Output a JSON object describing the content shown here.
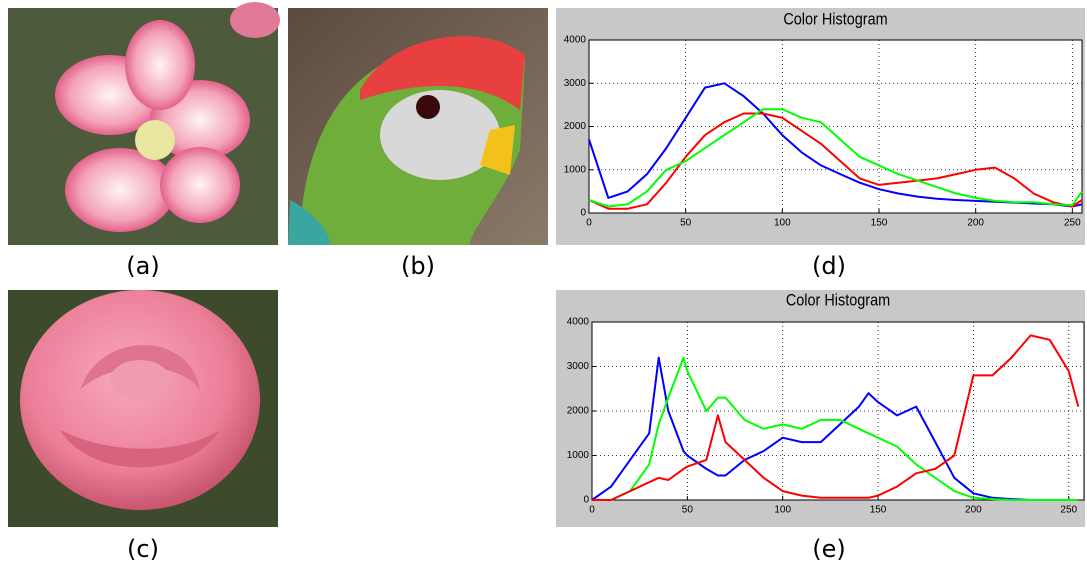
{
  "captions": [
    "(a)",
    "(b)",
    "(c)",
    "(d)",
    "(e)"
  ],
  "chart_data": [
    {
      "type": "line",
      "title": "Color Histogram",
      "x": [
        0,
        10,
        20,
        30,
        40,
        50,
        60,
        70,
        80,
        90,
        100,
        110,
        120,
        130,
        140,
        150,
        160,
        170,
        180,
        190,
        200,
        210,
        220,
        230,
        240,
        250,
        255
      ],
      "series": [
        {
          "color": "#0000ff",
          "values": [
            1700,
            350,
            500,
            900,
            1500,
            2200,
            2900,
            3000,
            2700,
            2300,
            1800,
            1400,
            1100,
            900,
            700,
            550,
            450,
            380,
            330,
            300,
            280,
            260,
            240,
            220,
            200,
            150,
            200
          ]
        },
        {
          "color": "#ff0000",
          "values": [
            300,
            100,
            100,
            200,
            700,
            1300,
            1800,
            2100,
            2300,
            2300,
            2200,
            1900,
            1600,
            1200,
            800,
            650,
            700,
            750,
            800,
            900,
            1000,
            1050,
            800,
            450,
            250,
            150,
            300
          ]
        },
        {
          "color": "#00ff00",
          "values": [
            300,
            150,
            200,
            500,
            1000,
            1200,
            1500,
            1800,
            2100,
            2400,
            2400,
            2200,
            2100,
            1700,
            1300,
            1100,
            900,
            750,
            600,
            450,
            350,
            280,
            250,
            250,
            200,
            180,
            500
          ]
        }
      ],
      "xlim": [
        0,
        255
      ],
      "xticks": [
        0,
        50,
        100,
        150,
        200,
        250
      ],
      "ylim": [
        0,
        4000
      ],
      "yticks": [
        0,
        1000,
        2000,
        3000,
        4000
      ],
      "grid": true
    },
    {
      "type": "line",
      "title": "Color Histogram",
      "x": [
        0,
        10,
        20,
        30,
        35,
        40,
        48,
        50,
        60,
        66,
        70,
        80,
        90,
        100,
        110,
        120,
        130,
        140,
        145,
        150,
        160,
        170,
        180,
        190,
        200,
        210,
        220,
        230,
        240,
        250,
        255
      ],
      "series": [
        {
          "color": "#0000ff",
          "values": [
            0,
            300,
            900,
            1500,
            3200,
            2000,
            1100,
            1000,
            700,
            550,
            550,
            900,
            1100,
            1400,
            1300,
            1300,
            1700,
            2100,
            2400,
            2200,
            1900,
            2100,
            1300,
            500,
            150,
            50,
            20,
            0,
            0,
            0,
            0
          ]
        },
        {
          "color": "#00ff00",
          "values": [
            0,
            0,
            200,
            800,
            1700,
            2300,
            3200,
            2900,
            2000,
            2300,
            2300,
            1800,
            1600,
            1700,
            1600,
            1800,
            1800,
            1600,
            1500,
            1400,
            1200,
            800,
            500,
            200,
            50,
            20,
            0,
            0,
            0,
            0,
            0
          ]
        },
        {
          "color": "#ff0000",
          "values": [
            0,
            0,
            200,
            400,
            500,
            450,
            700,
            750,
            900,
            1900,
            1300,
            900,
            500,
            200,
            100,
            50,
            50,
            50,
            50,
            100,
            300,
            600,
            700,
            1000,
            2800,
            2800,
            3200,
            3700,
            3600,
            2900,
            2100
          ]
        }
      ],
      "xlim": [
        0,
        258
      ],
      "xticks": [
        0,
        50,
        100,
        150,
        200,
        250
      ],
      "ylim": [
        0,
        4000
      ],
      "yticks": [
        0,
        1000,
        2000,
        3000,
        4000
      ],
      "grid": true
    }
  ]
}
